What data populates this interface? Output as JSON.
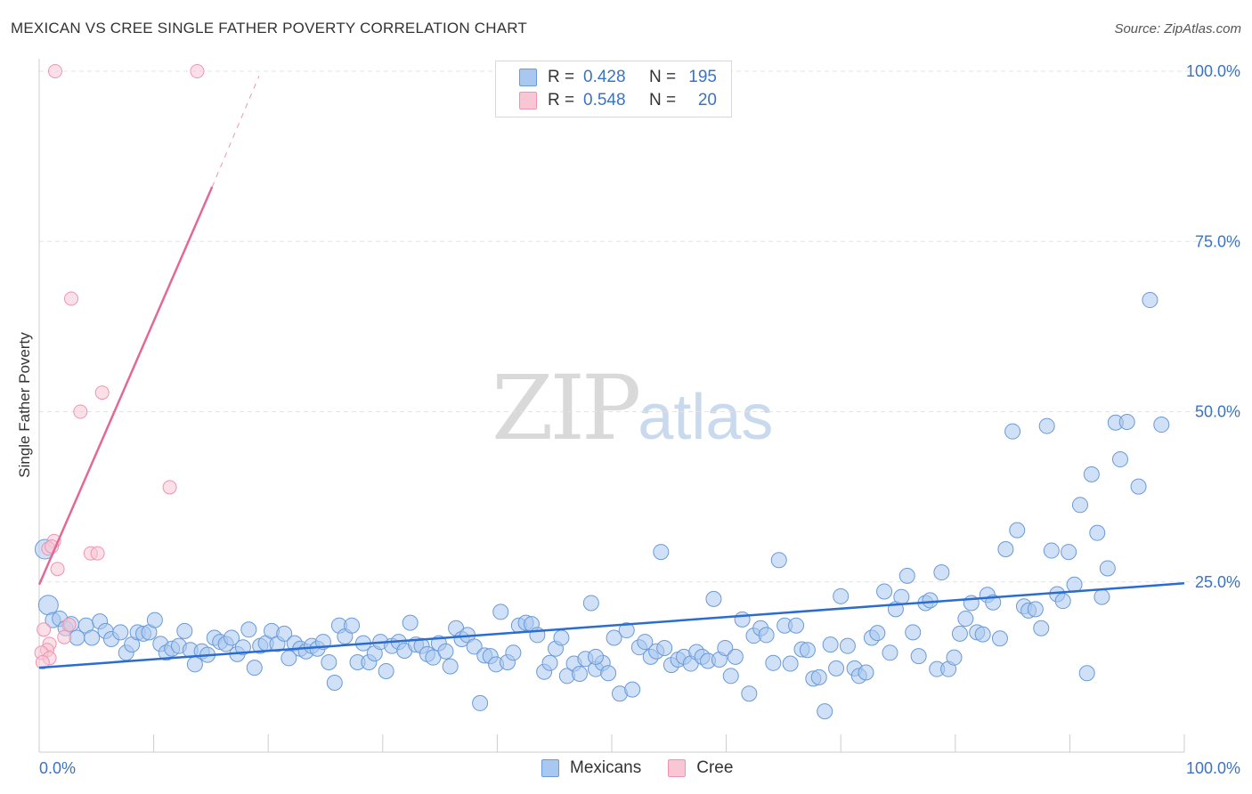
{
  "header": {
    "title": "MEXICAN VS CREE SINGLE FATHER POVERTY CORRELATION CHART",
    "source": "Source: ZipAtlas.com"
  },
  "legend": {
    "mexicans": {
      "r_label": "R =",
      "r_value": "0.428",
      "n_label": "N =",
      "n_value": "195",
      "color": "#a9c8f0"
    },
    "cree": {
      "r_label": "R =",
      "r_value": "0.548",
      "n_label": "N =",
      "n_value": "20",
      "color": "#f5b8cb"
    }
  },
  "bottom_legend": {
    "mexicans": "Mexicans",
    "cree": "Cree"
  },
  "watermark": {
    "zip": "ZIP",
    "atlas": "atlas"
  },
  "chart_data": {
    "type": "scatter",
    "title": "MEXICAN VS CREE SINGLE FATHER POVERTY CORRELATION CHART",
    "ylabel": "Single Father Poverty",
    "xlabel": "",
    "xlim": [
      0,
      100
    ],
    "ylim": [
      0,
      100
    ],
    "x_tick_labels": [
      "0.0%",
      "100.0%"
    ],
    "y_tick_labels": [
      "25.0%",
      "50.0%",
      "75.0%",
      "100.0%"
    ],
    "y_ticks": [
      25,
      50,
      75,
      100
    ],
    "grid": "horizontal dashed",
    "legend_position": "top-center",
    "colors": {
      "mexicans_fill": "#a9c8f0",
      "mexicans_stroke": "#6a9ad8",
      "mexicans_line": "#2a6ccf",
      "cree_fill": "#f8c6d5",
      "cree_stroke": "#ee94b0",
      "cree_line": "#e46896",
      "axis_label": "#3b73c4"
    },
    "series": [
      {
        "name": "Mexicans",
        "trend": {
          "x": [
            0,
            100
          ],
          "y": [
            12.4,
            24.8
          ]
        },
        "points": [
          [
            0.5,
            29.8
          ],
          [
            0.8,
            21.6
          ],
          [
            1.2,
            19.4
          ],
          [
            1.8,
            19.6
          ],
          [
            2.3,
            18.2
          ],
          [
            2.8,
            18.8
          ],
          [
            3.3,
            16.8
          ],
          [
            4.1,
            18.6
          ],
          [
            4.6,
            16.8
          ],
          [
            5.3,
            19.2
          ],
          [
            5.8,
            17.8
          ],
          [
            6.3,
            16.6
          ],
          [
            7.1,
            17.6
          ],
          [
            7.6,
            14.6
          ],
          [
            8.1,
            15.8
          ],
          [
            8.6,
            17.6
          ],
          [
            9.1,
            17.4
          ],
          [
            9.6,
            17.6
          ],
          [
            10.1,
            19.4
          ],
          [
            10.6,
            15.9
          ],
          [
            11.1,
            14.6
          ],
          [
            11.6,
            15.2
          ],
          [
            12.2,
            15.6
          ],
          [
            12.7,
            17.8
          ],
          [
            13.2,
            15.0
          ],
          [
            13.6,
            12.9
          ],
          [
            14.2,
            14.8
          ],
          [
            14.7,
            14.3
          ],
          [
            15.3,
            16.8
          ],
          [
            15.8,
            16.2
          ],
          [
            16.3,
            15.9
          ],
          [
            16.8,
            16.8
          ],
          [
            17.3,
            14.4
          ],
          [
            17.8,
            15.4
          ],
          [
            18.3,
            18.0
          ],
          [
            18.8,
            12.4
          ],
          [
            19.3,
            15.6
          ],
          [
            19.8,
            16.0
          ],
          [
            20.3,
            17.8
          ],
          [
            20.8,
            15.9
          ],
          [
            21.4,
            17.4
          ],
          [
            21.8,
            13.8
          ],
          [
            22.3,
            16.0
          ],
          [
            22.8,
            15.2
          ],
          [
            23.3,
            14.8
          ],
          [
            23.8,
            15.6
          ],
          [
            24.3,
            15.2
          ],
          [
            24.8,
            16.2
          ],
          [
            25.3,
            13.2
          ],
          [
            25.8,
            10.2
          ],
          [
            26.2,
            18.6
          ],
          [
            26.7,
            17.0
          ],
          [
            27.3,
            18.6
          ],
          [
            27.8,
            13.2
          ],
          [
            28.3,
            16.0
          ],
          [
            28.8,
            13.2
          ],
          [
            29.3,
            14.5
          ],
          [
            29.8,
            16.2
          ],
          [
            30.3,
            11.9
          ],
          [
            30.8,
            15.6
          ],
          [
            31.4,
            16.2
          ],
          [
            31.9,
            14.9
          ],
          [
            32.4,
            19.0
          ],
          [
            32.9,
            15.8
          ],
          [
            33.4,
            15.6
          ],
          [
            33.9,
            14.4
          ],
          [
            34.4,
            13.9
          ],
          [
            34.9,
            16.0
          ],
          [
            35.5,
            14.8
          ],
          [
            35.9,
            12.6
          ],
          [
            36.4,
            18.2
          ],
          [
            36.9,
            16.6
          ],
          [
            37.4,
            17.2
          ],
          [
            38.0,
            15.5
          ],
          [
            38.5,
            7.2
          ],
          [
            38.9,
            14.2
          ],
          [
            39.4,
            14.1
          ],
          [
            39.9,
            12.9
          ],
          [
            40.3,
            20.6
          ],
          [
            40.9,
            13.2
          ],
          [
            41.4,
            14.6
          ],
          [
            41.9,
            18.6
          ],
          [
            42.5,
            19.0
          ],
          [
            43.0,
            18.8
          ],
          [
            43.5,
            17.2
          ],
          [
            44.1,
            11.8
          ],
          [
            44.6,
            13.1
          ],
          [
            45.1,
            15.2
          ],
          [
            45.6,
            16.8
          ],
          [
            46.1,
            11.2
          ],
          [
            46.7,
            13.0
          ],
          [
            47.2,
            11.5
          ],
          [
            47.7,
            13.7
          ],
          [
            48.2,
            21.9
          ],
          [
            48.6,
            12.2
          ],
          [
            49.2,
            13.1
          ],
          [
            49.7,
            11.6
          ],
          [
            50.2,
            16.8
          ],
          [
            50.7,
            8.6
          ],
          [
            51.3,
            17.9
          ],
          [
            51.8,
            9.2
          ],
          [
            52.4,
            15.4
          ],
          [
            52.9,
            16.2
          ],
          [
            53.4,
            14.0
          ],
          [
            53.9,
            14.8
          ],
          [
            54.3,
            29.4
          ],
          [
            54.6,
            15.3
          ],
          [
            55.2,
            12.8
          ],
          [
            55.8,
            13.6
          ],
          [
            56.3,
            14.0
          ],
          [
            56.9,
            13.0
          ],
          [
            57.4,
            14.7
          ],
          [
            57.9,
            14.0
          ],
          [
            58.4,
            13.4
          ],
          [
            58.9,
            22.5
          ],
          [
            59.4,
            13.6
          ],
          [
            59.9,
            15.3
          ],
          [
            60.4,
            11.2
          ],
          [
            60.8,
            14.0
          ],
          [
            61.4,
            19.5
          ],
          [
            62.0,
            8.6
          ],
          [
            62.4,
            17.1
          ],
          [
            63.0,
            18.2
          ],
          [
            63.5,
            17.2
          ],
          [
            64.1,
            13.1
          ],
          [
            64.6,
            28.2
          ],
          [
            65.1,
            18.6
          ],
          [
            65.6,
            13.0
          ],
          [
            66.1,
            18.6
          ],
          [
            66.6,
            15.1
          ],
          [
            67.1,
            15.0
          ],
          [
            67.6,
            10.8
          ],
          [
            68.1,
            11.0
          ],
          [
            68.6,
            6.0
          ],
          [
            69.1,
            15.8
          ],
          [
            69.6,
            12.3
          ],
          [
            70.0,
            22.9
          ],
          [
            70.6,
            15.6
          ],
          [
            71.2,
            12.3
          ],
          [
            71.6,
            11.2
          ],
          [
            72.2,
            11.7
          ],
          [
            72.7,
            16.8
          ],
          [
            73.2,
            17.5
          ],
          [
            73.8,
            23.6
          ],
          [
            74.3,
            14.6
          ],
          [
            74.8,
            21.0
          ],
          [
            75.3,
            22.8
          ],
          [
            75.8,
            25.9
          ],
          [
            76.3,
            17.6
          ],
          [
            76.8,
            14.1
          ],
          [
            77.4,
            21.9
          ],
          [
            77.8,
            22.3
          ],
          [
            78.4,
            12.2
          ],
          [
            78.8,
            26.4
          ],
          [
            79.4,
            12.2
          ],
          [
            79.9,
            13.9
          ],
          [
            80.4,
            17.4
          ],
          [
            80.9,
            19.6
          ],
          [
            81.4,
            21.9
          ],
          [
            81.9,
            17.6
          ],
          [
            82.4,
            17.3
          ],
          [
            82.8,
            23.1
          ],
          [
            83.3,
            22.0
          ],
          [
            83.9,
            16.7
          ],
          [
            84.4,
            29.8
          ],
          [
            85.0,
            47.1
          ],
          [
            85.4,
            32.6
          ],
          [
            86.0,
            21.4
          ],
          [
            86.4,
            20.8
          ],
          [
            87.0,
            21.0
          ],
          [
            87.5,
            18.2
          ],
          [
            88.0,
            47.9
          ],
          [
            88.4,
            29.6
          ],
          [
            88.9,
            23.2
          ],
          [
            89.4,
            22.2
          ],
          [
            89.9,
            29.4
          ],
          [
            90.4,
            24.6
          ],
          [
            90.9,
            36.3
          ],
          [
            91.5,
            11.6
          ],
          [
            91.9,
            40.8
          ],
          [
            92.4,
            32.2
          ],
          [
            92.8,
            22.8
          ],
          [
            93.3,
            27.0
          ],
          [
            94.0,
            48.4
          ],
          [
            94.4,
            43.0
          ],
          [
            95.0,
            48.5
          ],
          [
            96.0,
            39.0
          ],
          [
            97.0,
            66.4
          ],
          [
            98.0,
            48.1
          ],
          [
            48.6,
            14.0
          ]
        ]
      },
      {
        "name": "Cree",
        "trend": {
          "x": [
            0,
            15.1
          ],
          "y": [
            24.6,
            83.0
          ]
        },
        "trend_extended": {
          "x": [
            15.1,
            19.2
          ],
          "y": [
            83.0,
            99.3
          ]
        },
        "points": [
          [
            1.4,
            100.0
          ],
          [
            13.8,
            100.0
          ],
          [
            2.8,
            66.6
          ],
          [
            5.5,
            52.8
          ],
          [
            3.6,
            50.0
          ],
          [
            11.4,
            38.9
          ],
          [
            1.3,
            31.0
          ],
          [
            0.8,
            29.9
          ],
          [
            1.1,
            30.2
          ],
          [
            1.6,
            26.9
          ],
          [
            4.5,
            29.2
          ],
          [
            5.1,
            29.2
          ],
          [
            2.6,
            18.7
          ],
          [
            2.2,
            16.9
          ],
          [
            0.4,
            18.0
          ],
          [
            0.9,
            15.9
          ],
          [
            0.7,
            15.0
          ],
          [
            0.2,
            14.6
          ],
          [
            0.9,
            13.8
          ],
          [
            0.3,
            13.2
          ]
        ]
      }
    ]
  }
}
